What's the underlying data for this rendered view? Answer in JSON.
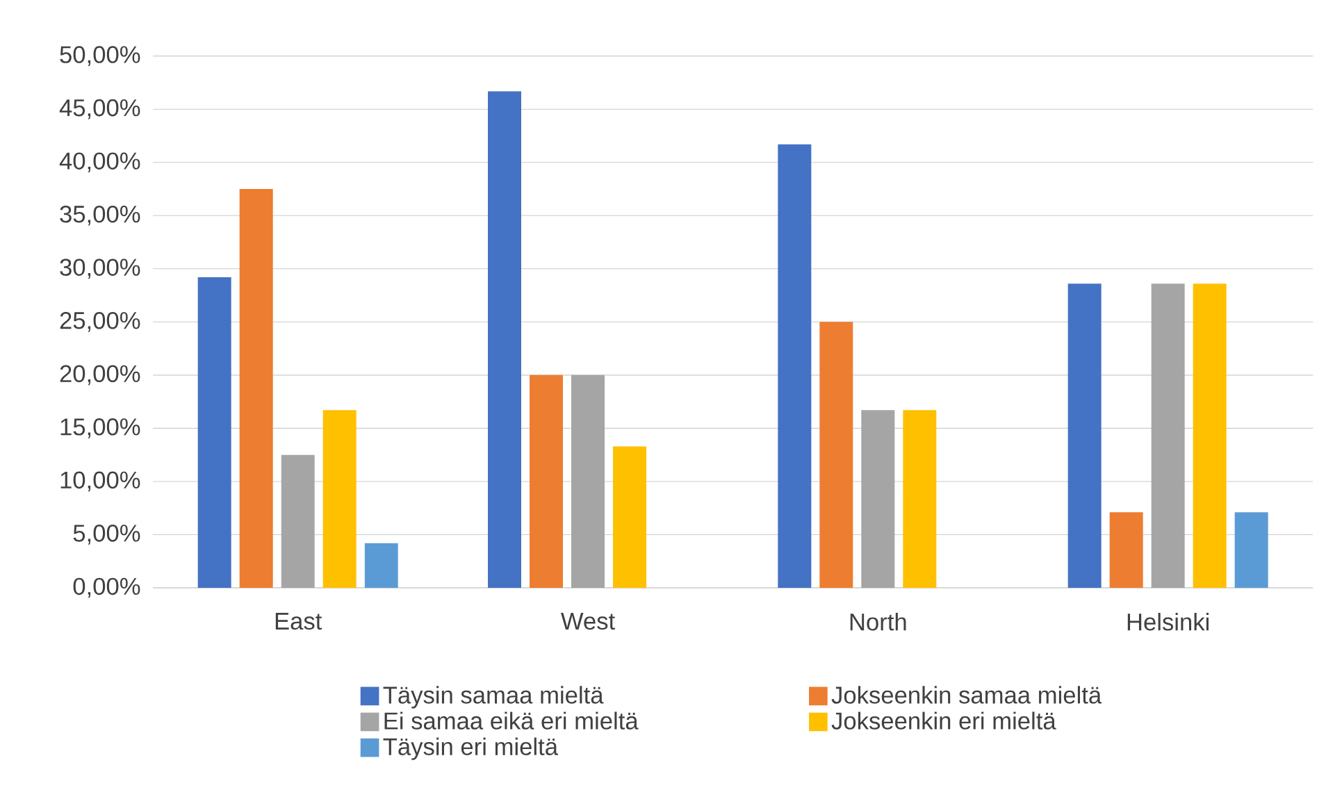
{
  "chart_data": {
    "type": "bar",
    "categories": [
      "East",
      "West",
      "North",
      "Helsinki"
    ],
    "series": [
      {
        "name": "Täysin samaa mieltä",
        "color": "#4472c4",
        "values": [
          29.2,
          46.7,
          41.7,
          28.6
        ]
      },
      {
        "name": "Jokseenkin samaa mieltä",
        "color": "#ed7d31",
        "values": [
          37.5,
          20,
          25,
          7.1
        ]
      },
      {
        "name": "Ei samaa eikä eri mieltä",
        "color": "#a5a5a5",
        "values": [
          12.5,
          20,
          16.7,
          28.6
        ]
      },
      {
        "name": "Jokseenkin eri mieltä",
        "color": "#ffc000",
        "values": [
          16.7,
          13.3,
          16.7,
          28.6
        ]
      },
      {
        "name": "Täysin eri mieltä",
        "color": "#5b9bd5",
        "values": [
          4.2,
          null,
          null,
          7.1
        ]
      }
    ],
    "ylim": [
      0,
      50
    ],
    "yticks": [
      {
        "value": 0,
        "label": "0,00%"
      },
      {
        "value": 5,
        "label": "5,00%"
      },
      {
        "value": 10,
        "label": "10,00%"
      },
      {
        "value": 15,
        "label": "15,00%"
      },
      {
        "value": 20,
        "label": "20,00%"
      },
      {
        "value": 25,
        "label": "25,00%"
      },
      {
        "value": 30,
        "label": "30,00%"
      },
      {
        "value": 35,
        "label": "35,00%"
      },
      {
        "value": 40,
        "label": "40,00%"
      },
      {
        "value": 45,
        "label": "45,00%"
      },
      {
        "value": 50,
        "label": "50,00%"
      }
    ],
    "grid": "y",
    "legend": "bottom"
  }
}
